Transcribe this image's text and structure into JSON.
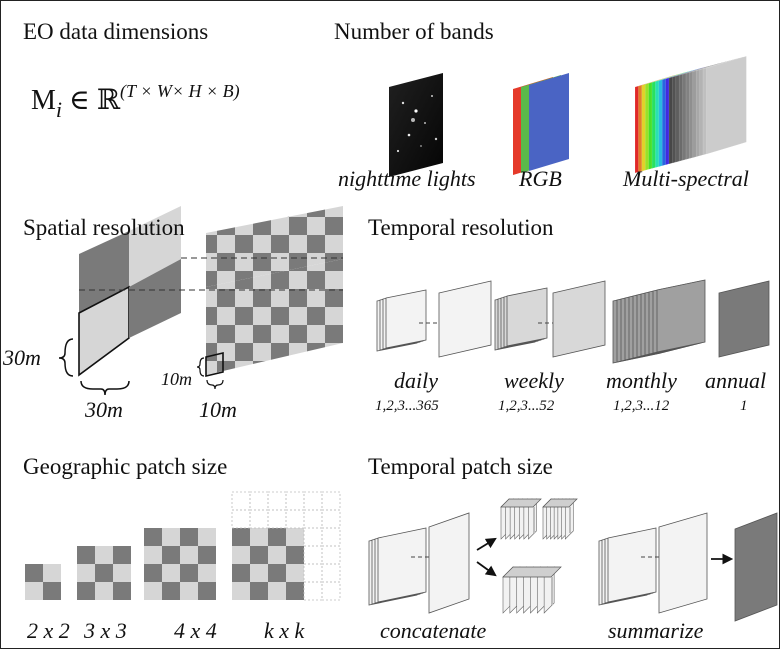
{
  "sections": {
    "eo_dimensions": {
      "title": "EO data dimensions",
      "formula": {
        "m": "M",
        "i": "i",
        "in": " ∈ ",
        "R": "ℝ",
        "exp": "(T × W× H × B)"
      }
    },
    "bands": {
      "title": "Number of bands",
      "items": [
        "nighttime lights",
        "RGB",
        "Multi-spectral"
      ]
    },
    "spatial": {
      "title": "Spatial resolution",
      "coarse": {
        "side": "30m",
        "bottom": "30m"
      },
      "fine": {
        "side": "10m",
        "bottom": "10m"
      }
    },
    "temporal": {
      "title": "Temporal resolution",
      "items": [
        {
          "label": "daily",
          "range": "1,2,3...365"
        },
        {
          "label": "weekly",
          "range": "1,2,3...52"
        },
        {
          "label": "monthly",
          "range": "1,2,3...12"
        },
        {
          "label": "annual",
          "range": "1"
        }
      ]
    },
    "geo_patch": {
      "title": "Geographic patch size",
      "items": [
        "2 x 2",
        "3 x 3",
        "4 x 4",
        "k x k"
      ]
    },
    "temporal_patch": {
      "title": "Temporal patch size",
      "items": [
        "concatenate",
        "summarize"
      ]
    }
  },
  "colors": {
    "dark_gray": "#7a7a7a",
    "light_gray": "#d6d6d6",
    "frame": "#222222",
    "red": "#e53a2a",
    "green": "#5bb94a",
    "blue": "#4a64c4"
  }
}
